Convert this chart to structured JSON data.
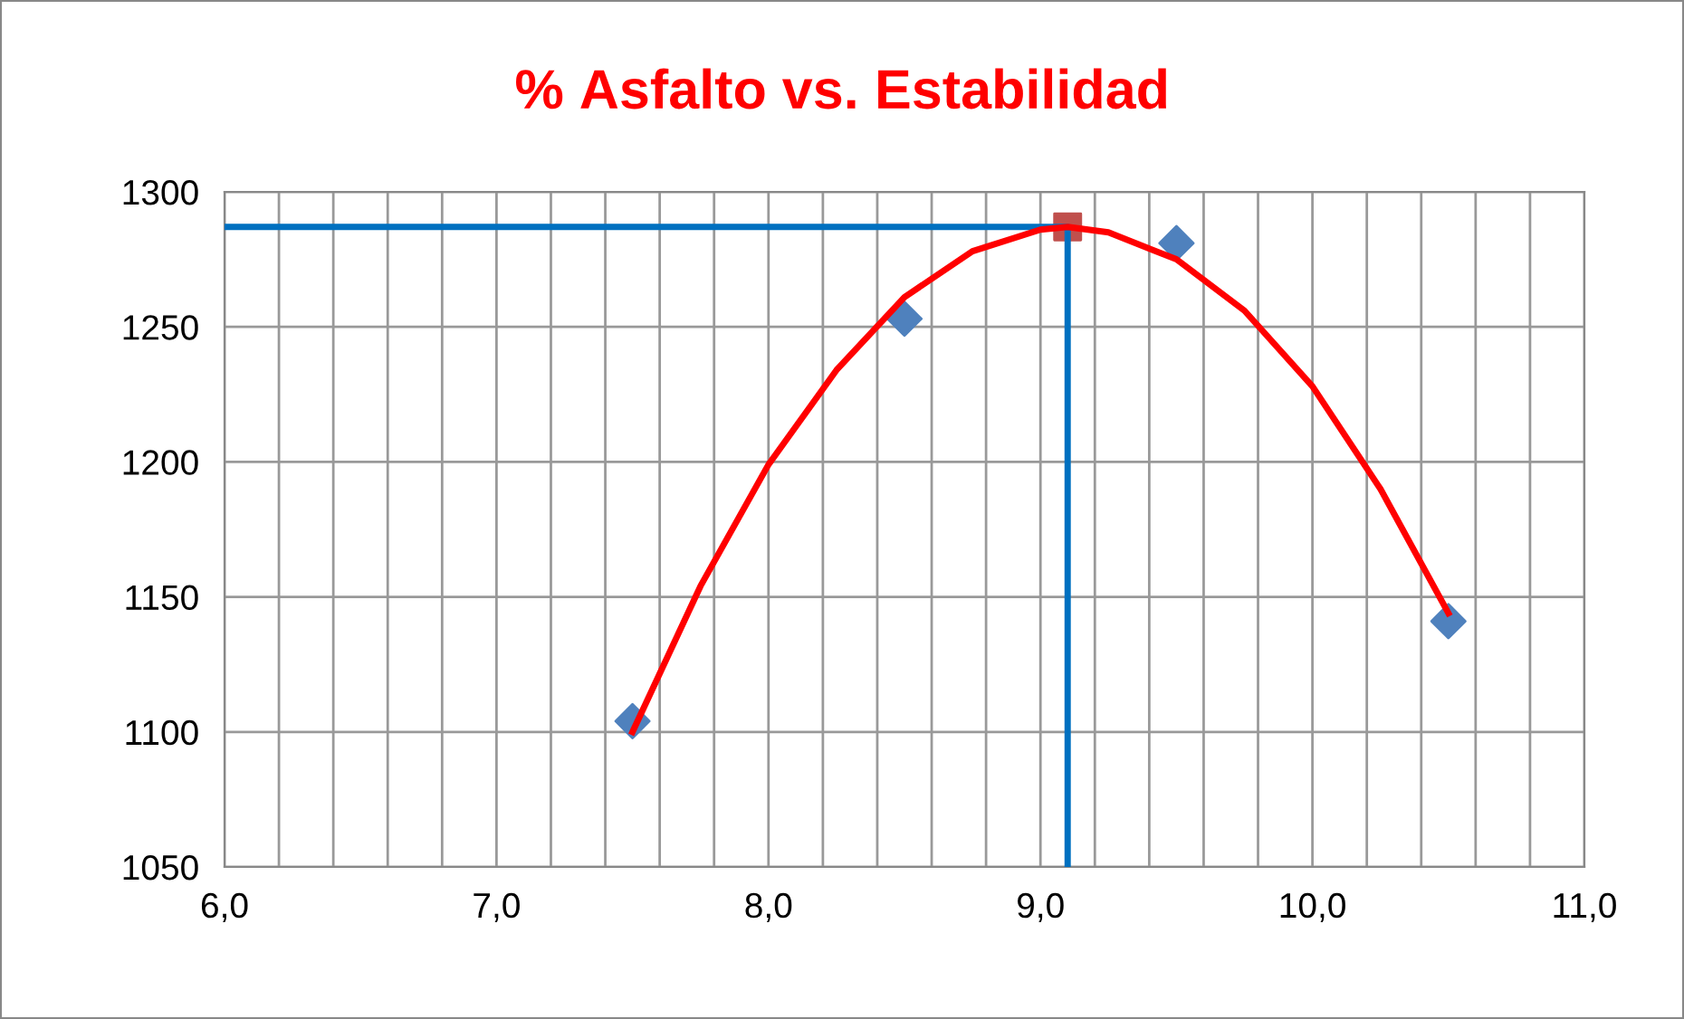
{
  "chart_data": {
    "type": "scatter",
    "title": "% Asfalto vs. Estabilidad",
    "xlim": [
      6,
      11
    ],
    "ylim": [
      1050,
      1300
    ],
    "xticks": [
      {
        "value": 6,
        "label": "6,0"
      },
      {
        "value": 6.2,
        "label": null
      },
      {
        "value": 6.4,
        "label": null
      },
      {
        "value": 6.6,
        "label": null
      },
      {
        "value": 6.8,
        "label": null
      },
      {
        "value": 7,
        "label": "7,0"
      },
      {
        "value": 7.2,
        "label": null
      },
      {
        "value": 7.4,
        "label": null
      },
      {
        "value": 7.6,
        "label": null
      },
      {
        "value": 7.8,
        "label": null
      },
      {
        "value": 8,
        "label": "8,0"
      },
      {
        "value": 8.2,
        "label": null
      },
      {
        "value": 8.4,
        "label": null
      },
      {
        "value": 8.6,
        "label": null
      },
      {
        "value": 8.8,
        "label": null
      },
      {
        "value": 9,
        "label": "9,0"
      },
      {
        "value": 9.2,
        "label": null
      },
      {
        "value": 9.4,
        "label": null
      },
      {
        "value": 9.6,
        "label": null
      },
      {
        "value": 9.8,
        "label": null
      },
      {
        "value": 10,
        "label": "10,0"
      },
      {
        "value": 10.2,
        "label": null
      },
      {
        "value": 10.4,
        "label": null
      },
      {
        "value": 10.6,
        "label": null
      },
      {
        "value": 10.8,
        "label": null
      },
      {
        "value": 11,
        "label": "11,0"
      }
    ],
    "yticks": [
      1050,
      1100,
      1150,
      1200,
      1250,
      1300
    ],
    "grid": true,
    "legend": false,
    "series": [
      {
        "type": "line",
        "color": "#0070c0",
        "x": [
          6,
          9.1,
          9.1
        ],
        "values": [
          1287,
          1287,
          1050
        ],
        "marker": "none"
      },
      {
        "type": "line",
        "color": "#ff0000",
        "x": [
          7.5,
          7.75,
          8.0,
          8.25,
          8.5,
          8.75,
          9.0,
          9.1,
          9.25,
          9.5,
          9.75,
          10.0,
          10.25,
          10.5
        ],
        "values": [
          1100,
          1154,
          1199,
          1234,
          1261,
          1278,
          1286,
          1287,
          1285,
          1275,
          1256,
          1228,
          1190,
          1144
        ],
        "marker": "none"
      },
      {
        "type": "scatter",
        "color": "#4f81bd",
        "x": [
          7.5,
          8.5,
          9.5,
          10.5
        ],
        "values": [
          1104,
          1253,
          1281,
          1141
        ],
        "marker": "diamond"
      },
      {
        "type": "scatter",
        "color": "#c0504d",
        "x": [
          9.1
        ],
        "values": [
          1287
        ],
        "marker": "square"
      }
    ]
  }
}
